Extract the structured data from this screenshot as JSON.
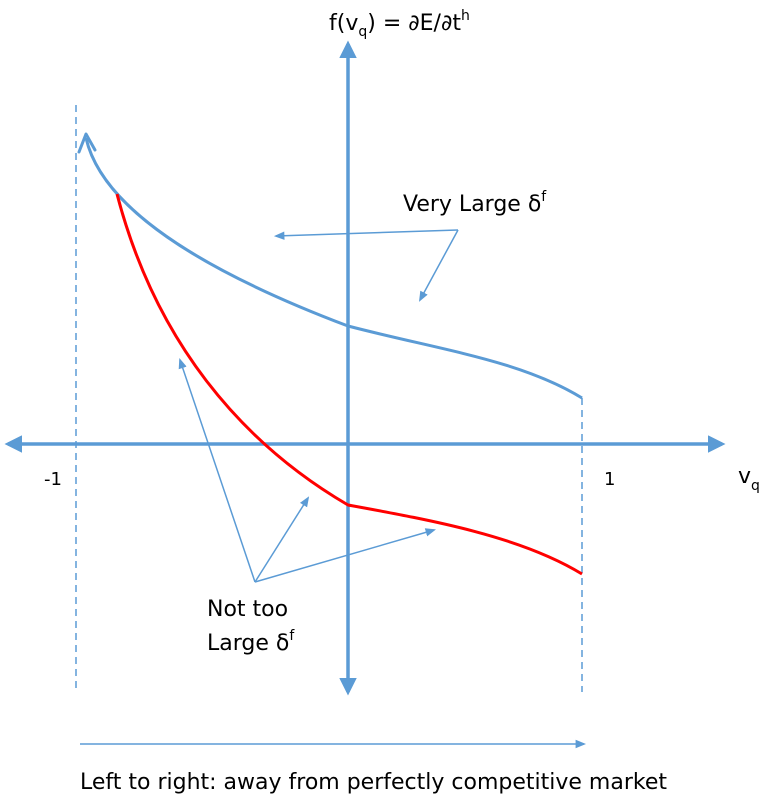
{
  "y_axis_label": {
    "main": "f(v",
    "sub": "q",
    "mid": ") = ∂E/∂t",
    "sup": "h"
  },
  "x_axis_label": {
    "main": "v",
    "sub": "q"
  },
  "tick_left": "-1",
  "tick_right": "1",
  "very_large_label": {
    "text": "Very Large δ",
    "sup": "f"
  },
  "not_too_large_label": {
    "line1": "Not too",
    "line2": "Large δ",
    "sup": "f"
  },
  "caption": "Left to right: away from perfectly competitive market",
  "colors": {
    "axis": "#5b9bd5",
    "blue_curve": "#5b9bd5",
    "red_curve": "#ff0000",
    "text": "#000000"
  }
}
